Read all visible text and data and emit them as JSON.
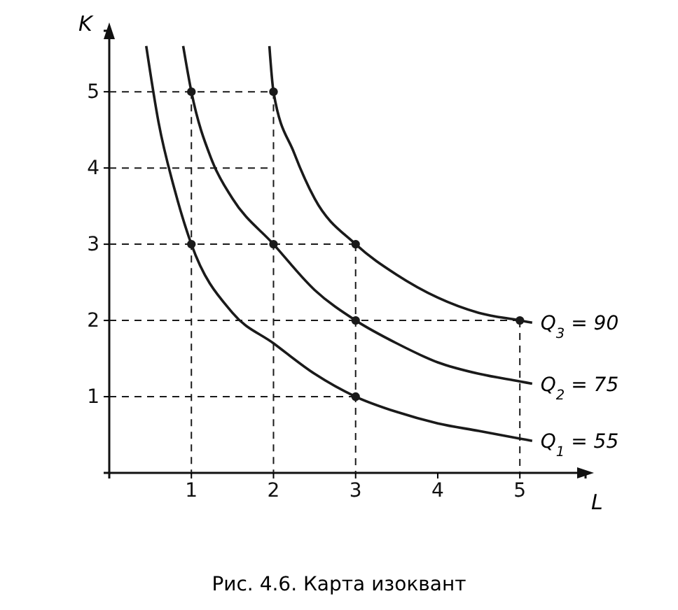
{
  "chart_data": {
    "type": "line",
    "title": "Рис. 4.6. Карта изоквант",
    "xlabel": "L",
    "ylabel": "K",
    "xlim": [
      0,
      5.8
    ],
    "ylim": [
      0,
      5.8
    ],
    "xticks": [
      1,
      2,
      3,
      4,
      5
    ],
    "yticks": [
      1,
      2,
      3,
      4,
      5
    ],
    "marker": "none",
    "line_style": "solid",
    "series": [
      {
        "name": "Q$_{1}$ = 55",
        "color": "#1a1a1a",
        "x": [
          0.45,
          0.6,
          0.8,
          1,
          1.5,
          2,
          2.5,
          3,
          3.5,
          4,
          4.5,
          5,
          5.15
        ],
        "values": [
          5.6,
          4.6,
          3.7,
          3,
          2.1,
          1.7,
          1.3,
          1,
          0.8,
          0.65,
          0.55,
          0.45,
          0.42
        ]
      },
      {
        "name": "Q$_{2}$ = 75",
        "color": "#1a1a1a",
        "x": [
          0.9,
          1,
          1.25,
          1.5,
          2,
          2.5,
          3,
          3.5,
          4,
          4.5,
          5,
          5.15
        ],
        "values": [
          5.6,
          5,
          4.1,
          3.6,
          3,
          2.4,
          2,
          1.7,
          1.45,
          1.3,
          1.2,
          1.17
        ]
      },
      {
        "name": "Q$_{3}$ = 90",
        "color": "#1a1a1a",
        "x": [
          1.95,
          2,
          2.25,
          2.5,
          3,
          3.5,
          4,
          4.5,
          5,
          5.15
        ],
        "values": [
          5.6,
          5,
          4.2,
          3.6,
          3,
          2.6,
          2.3,
          2.1,
          2,
          1.97
        ]
      },
      {
        "type": "scatter",
        "color": "#1a1a1a",
        "marker": "circle",
        "x": [
          1,
          3,
          1,
          2,
          3,
          2,
          3,
          5
        ],
        "values": [
          3,
          1,
          5,
          3,
          2,
          5,
          3,
          2
        ]
      },
      {
        "color": "#1a1a1a",
        "line_style": "dashed",
        "x": [
          0,
          2
        ],
        "values": [
          5,
          5
        ]
      },
      {
        "color": "#1a1a1a",
        "line_style": "dashed",
        "x": [
          1,
          1
        ],
        "values": [
          5,
          0
        ]
      },
      {
        "color": "#1a1a1a",
        "line_style": "dashed",
        "x": [
          2,
          2
        ],
        "values": [
          5,
          0
        ]
      },
      {
        "color": "#1a1a1a",
        "line_style": "dashed",
        "x": [
          0,
          2
        ],
        "values": [
          4,
          4
        ]
      },
      {
        "color": "#1a1a1a",
        "line_style": "dashed",
        "x": [
          0,
          3
        ],
        "values": [
          3,
          3
        ]
      },
      {
        "color": "#1a1a1a",
        "line_style": "dashed",
        "x": [
          3,
          3
        ],
        "values": [
          3,
          0
        ]
      },
      {
        "color": "#1a1a1a",
        "line_style": "dashed",
        "x": [
          0,
          5
        ],
        "values": [
          2,
          2
        ]
      },
      {
        "color": "#1a1a1a",
        "line_style": "dashed",
        "x": [
          5,
          5
        ],
        "values": [
          2,
          0
        ]
      },
      {
        "color": "#1a1a1a",
        "line_style": "dashed",
        "x": [
          0,
          3
        ],
        "values": [
          1,
          1
        ]
      }
    ]
  }
}
